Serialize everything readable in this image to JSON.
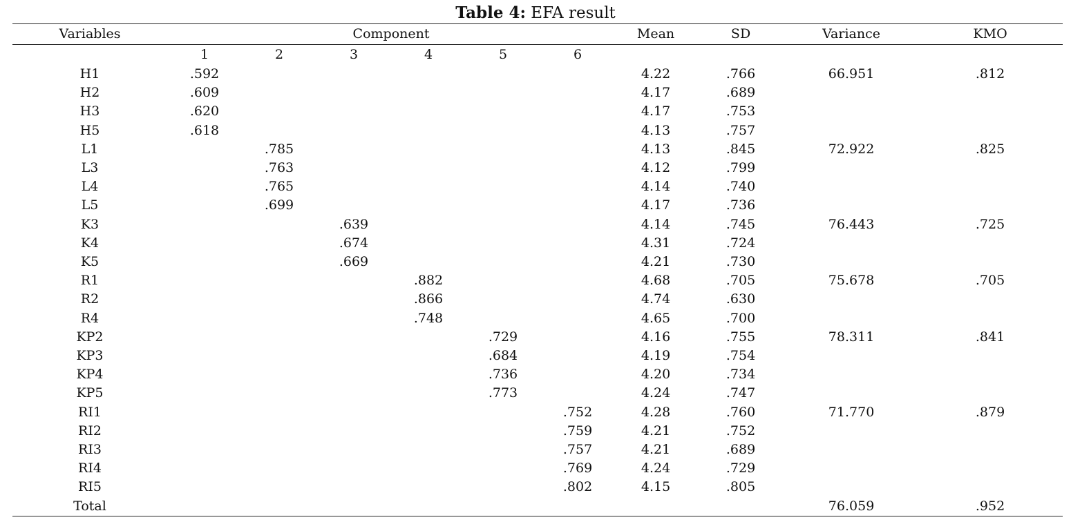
{
  "caption": {
    "label": "Table 4:",
    "text": "EFA result"
  },
  "headers": {
    "variables": "Variables",
    "component": "Component",
    "mean": "Mean",
    "sd": "SD",
    "variance": "Variance",
    "kmo": "KMO",
    "component_numbers": [
      "1",
      "2",
      "3",
      "4",
      "5",
      "6"
    ]
  },
  "rows": [
    {
      "name": "H1",
      "c": [
        ".592",
        "",
        "",
        "",
        "",
        ""
      ],
      "mean": "4.22",
      "sd": ".766",
      "variance": "66.951",
      "kmo": ".812"
    },
    {
      "name": "H2",
      "c": [
        ".609",
        "",
        "",
        "",
        "",
        ""
      ],
      "mean": "4.17",
      "sd": ".689",
      "variance": "",
      "kmo": ""
    },
    {
      "name": "H3",
      "c": [
        ".620",
        "",
        "",
        "",
        "",
        ""
      ],
      "mean": "4.17",
      "sd": ".753",
      "variance": "",
      "kmo": ""
    },
    {
      "name": "H5",
      "c": [
        ".618",
        "",
        "",
        "",
        "",
        ""
      ],
      "mean": "4.13",
      "sd": ".757",
      "variance": "",
      "kmo": ""
    },
    {
      "name": "L1",
      "c": [
        "",
        ".785",
        "",
        "",
        "",
        ""
      ],
      "mean": "4.13",
      "sd": ".845",
      "variance": "72.922",
      "kmo": ".825"
    },
    {
      "name": "L3",
      "c": [
        "",
        ".763",
        "",
        "",
        "",
        ""
      ],
      "mean": "4.12",
      "sd": ".799",
      "variance": "",
      "kmo": ""
    },
    {
      "name": "L4",
      "c": [
        "",
        ".765",
        "",
        "",
        "",
        ""
      ],
      "mean": "4.14",
      "sd": ".740",
      "variance": "",
      "kmo": ""
    },
    {
      "name": "L5",
      "c": [
        "",
        ".699",
        "",
        "",
        "",
        ""
      ],
      "mean": "4.17",
      "sd": ".736",
      "variance": "",
      "kmo": ""
    },
    {
      "name": "K3",
      "c": [
        "",
        "",
        ".639",
        "",
        "",
        ""
      ],
      "mean": "4.14",
      "sd": ".745",
      "variance": "76.443",
      "kmo": ".725"
    },
    {
      "name": "K4",
      "c": [
        "",
        "",
        ".674",
        "",
        "",
        ""
      ],
      "mean": "4.31",
      "sd": ".724",
      "variance": "",
      "kmo": ""
    },
    {
      "name": "K5",
      "c": [
        "",
        "",
        ".669",
        "",
        "",
        ""
      ],
      "mean": "4.21",
      "sd": ".730",
      "variance": "",
      "kmo": ""
    },
    {
      "name": "R1",
      "c": [
        "",
        "",
        "",
        ".882",
        "",
        ""
      ],
      "mean": "4.68",
      "sd": ".705",
      "variance": "75.678",
      "kmo": ".705"
    },
    {
      "name": "R2",
      "c": [
        "",
        "",
        "",
        ".866",
        "",
        ""
      ],
      "mean": "4.74",
      "sd": ".630",
      "variance": "",
      "kmo": ""
    },
    {
      "name": "R4",
      "c": [
        "",
        "",
        "",
        ".748",
        "",
        ""
      ],
      "mean": "4.65",
      "sd": ".700",
      "variance": "",
      "kmo": ""
    },
    {
      "name": "KP2",
      "c": [
        "",
        "",
        "",
        "",
        ".729",
        ""
      ],
      "mean": "4.16",
      "sd": ".755",
      "variance": "78.311",
      "kmo": ".841"
    },
    {
      "name": "KP3",
      "c": [
        "",
        "",
        "",
        "",
        ".684",
        ""
      ],
      "mean": "4.19",
      "sd": ".754",
      "variance": "",
      "kmo": ""
    },
    {
      "name": "KP4",
      "c": [
        "",
        "",
        "",
        "",
        ".736",
        ""
      ],
      "mean": "4.20",
      "sd": ".734",
      "variance": "",
      "kmo": ""
    },
    {
      "name": "KP5",
      "c": [
        "",
        "",
        "",
        "",
        ".773",
        ""
      ],
      "mean": "4.24",
      "sd": ".747",
      "variance": "",
      "kmo": ""
    },
    {
      "name": "RI1",
      "c": [
        "",
        "",
        "",
        "",
        "",
        ".752"
      ],
      "mean": "4.28",
      "sd": ".760",
      "variance": "71.770",
      "kmo": ".879"
    },
    {
      "name": "RI2",
      "c": [
        "",
        "",
        "",
        "",
        "",
        ".759"
      ],
      "mean": "4.21",
      "sd": ".752",
      "variance": "",
      "kmo": ""
    },
    {
      "name": "RI3",
      "c": [
        "",
        "",
        "",
        "",
        "",
        ".757"
      ],
      "mean": "4.21",
      "sd": ".689",
      "variance": "",
      "kmo": ""
    },
    {
      "name": "RI4",
      "c": [
        "",
        "",
        "",
        "",
        "",
        ".769"
      ],
      "mean": "4.24",
      "sd": ".729",
      "variance": "",
      "kmo": ""
    },
    {
      "name": "RI5",
      "c": [
        "",
        "",
        "",
        "",
        "",
        ".802"
      ],
      "mean": "4.15",
      "sd": ".805",
      "variance": "",
      "kmo": ""
    },
    {
      "name": "Total",
      "c": [
        "",
        "",
        "",
        "",
        "",
        ""
      ],
      "mean": "",
      "sd": "",
      "variance": "76.059",
      "kmo": ".952"
    }
  ]
}
